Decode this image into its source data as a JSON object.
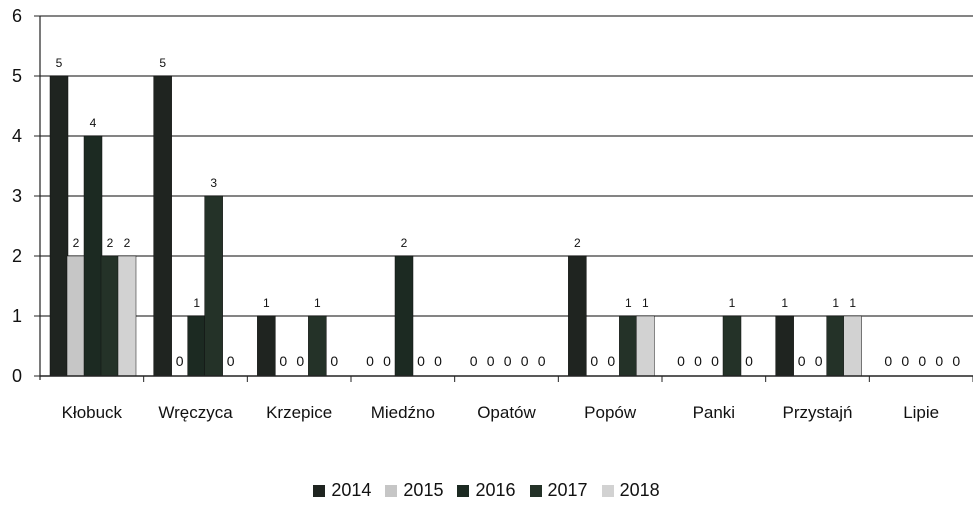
{
  "chart_data": {
    "type": "bar",
    "categories": [
      "Kłobuck",
      "Wręczyca",
      "Krzepice",
      "Miedźno",
      "Opatów",
      "Popów",
      "Panki",
      "Przystajń",
      "Lipie"
    ],
    "series": [
      {
        "name": "2014",
        "color": "#1f2420",
        "values": [
          5,
          5,
          1,
          0,
          0,
          2,
          0,
          1,
          0
        ]
      },
      {
        "name": "2015",
        "color": "#c6c6c6",
        "values": [
          2,
          0,
          0,
          0,
          0,
          0,
          0,
          0,
          0
        ]
      },
      {
        "name": "2016",
        "color": "#1c2a22",
        "values": [
          4,
          1,
          0,
          2,
          0,
          0,
          0,
          0,
          0
        ]
      },
      {
        "name": "2017",
        "color": "#243228",
        "values": [
          2,
          3,
          1,
          0,
          0,
          1,
          1,
          1,
          0
        ]
      },
      {
        "name": "2018",
        "color": "#d2d2d2",
        "values": [
          2,
          0,
          0,
          0,
          0,
          1,
          0,
          1,
          0
        ]
      }
    ],
    "ylim": [
      0,
      6
    ],
    "yticks": [
      "0",
      "1",
      "2",
      "3",
      "4",
      "5",
      "6"
    ],
    "grid": true,
    "legend": "bottom"
  }
}
